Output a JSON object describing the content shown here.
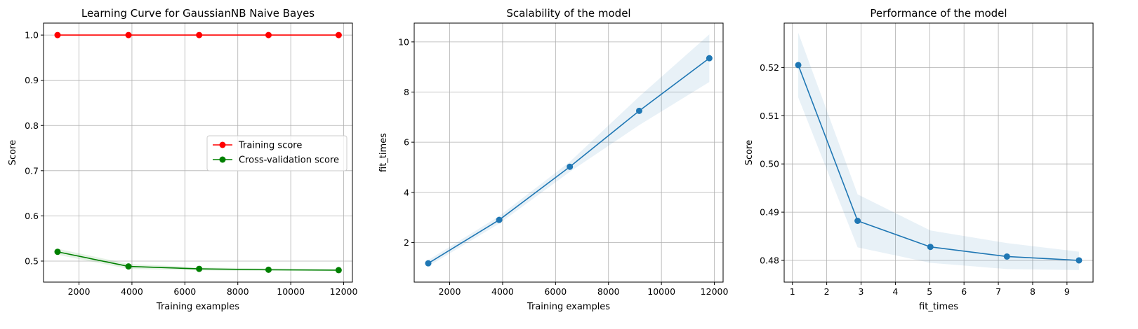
{
  "chart_data": [
    {
      "type": "line",
      "title": "Learning Curve for GaussianNB Naive Bayes",
      "xlabel": "Training examples",
      "ylabel": "Score",
      "xlim": [
        660,
        12330
      ],
      "ylim": [
        0.4535,
        1.0265
      ],
      "xticks": [
        2000,
        4000,
        6000,
        8000,
        10000,
        12000
      ],
      "yticks": [
        0.5,
        0.6,
        0.7,
        0.8,
        0.9,
        1.0
      ],
      "grid": true,
      "legend": "center-right",
      "series": [
        {
          "name": "Training score",
          "color": "#ff0000",
          "x": [
            1190,
            3870,
            6540,
            9160,
            11810
          ],
          "y": [
            1.0,
            1.0,
            1.0,
            1.0,
            1.0
          ],
          "y_lower": [
            1.0,
            1.0,
            1.0,
            1.0,
            1.0
          ],
          "y_upper": [
            1.0,
            1.0,
            1.0,
            1.0,
            1.0
          ]
        },
        {
          "name": "Cross-validation score",
          "color": "#008000",
          "x": [
            1190,
            3870,
            6540,
            9160,
            11810
          ],
          "y": [
            0.5205,
            0.4882,
            0.4828,
            0.4808,
            0.48
          ],
          "y_lower": [
            0.5138,
            0.4827,
            0.4795,
            0.4782,
            0.478
          ],
          "y_upper": [
            0.5272,
            0.4937,
            0.4862,
            0.4836,
            0.4818
          ]
        }
      ]
    },
    {
      "type": "line",
      "title": "Scalability of the model",
      "xlabel": "Training examples",
      "ylabel": "fit_times",
      "xlim": [
        660,
        12330
      ],
      "ylim": [
        0.42,
        10.75
      ],
      "xticks": [
        2000,
        4000,
        6000,
        8000,
        10000,
        12000
      ],
      "yticks": [
        2,
        4,
        6,
        8,
        10
      ],
      "grid": true,
      "series": [
        {
          "color": "#1f77b4",
          "x": [
            1190,
            3870,
            6540,
            9160,
            11810
          ],
          "y": [
            1.17,
            2.9,
            5.02,
            7.25,
            9.35
          ],
          "y_lower": [
            1.05,
            2.75,
            4.82,
            6.68,
            8.4
          ],
          "y_upper": [
            1.3,
            3.05,
            5.22,
            7.82,
            10.3
          ]
        }
      ]
    },
    {
      "type": "line",
      "title": "Performance of the model",
      "xlabel": "fit_times",
      "ylabel": "Score",
      "xlim": [
        0.76,
        9.76
      ],
      "ylim": [
        0.4755,
        0.5292
      ],
      "xticks": [
        1,
        2,
        3,
        4,
        5,
        6,
        7,
        8,
        9
      ],
      "yticks": [
        0.48,
        0.49,
        0.5,
        0.51,
        0.52
      ],
      "grid": true,
      "series": [
        {
          "color": "#1f77b4",
          "x": [
            1.17,
            2.9,
            5.02,
            7.25,
            9.35
          ],
          "y": [
            0.5205,
            0.4882,
            0.4828,
            0.4808,
            0.48
          ],
          "y_lower": [
            0.5138,
            0.4827,
            0.4795,
            0.4782,
            0.478
          ],
          "y_upper": [
            0.5272,
            0.4937,
            0.4862,
            0.4836,
            0.4818
          ]
        }
      ]
    }
  ]
}
